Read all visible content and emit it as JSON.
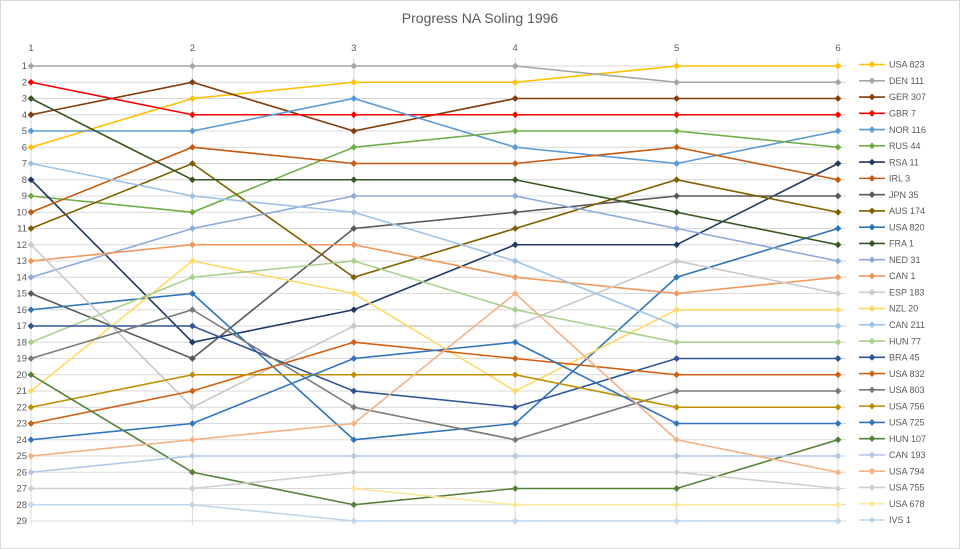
{
  "window": {
    "title": "Progress NA Soling 1996"
  },
  "chart_data": {
    "type": "line",
    "title": "Progress NA Soling 1996",
    "xlabel": "",
    "ylabel": "",
    "x_axis": {
      "position": "top",
      "labels": [
        "1",
        "2",
        "3",
        "4",
        "5",
        "6"
      ]
    },
    "y_axis": {
      "inverted": true,
      "min": 1,
      "max": 29,
      "labels": [
        "1",
        "2",
        "3",
        "4",
        "5",
        "6",
        "7",
        "8",
        "9",
        "10",
        "11",
        "12",
        "13",
        "14",
        "15",
        "16",
        "17",
        "18",
        "19",
        "20",
        "21",
        "22",
        "23",
        "24",
        "25",
        "26",
        "27",
        "28",
        "29"
      ]
    },
    "grid": true,
    "legend_position": "right",
    "marker": "diamond",
    "series": [
      {
        "name": "USA 823",
        "color": "#FFC000",
        "positions": [
          6,
          3,
          2,
          2,
          1,
          1
        ]
      },
      {
        "name": "DEN 111",
        "color": "#A5A5A5",
        "positions": [
          1,
          1,
          1,
          1,
          2,
          2
        ]
      },
      {
        "name": "GER 307",
        "color": "#843C0C",
        "positions": [
          4,
          2,
          5,
          3,
          3,
          3
        ]
      },
      {
        "name": "GBR 7",
        "color": "#FF0000",
        "positions": [
          2,
          4,
          4,
          4,
          4,
          4
        ]
      },
      {
        "name": "NOR 116",
        "color": "#5B9BD5",
        "positions": [
          5,
          5,
          3,
          6,
          7,
          5
        ]
      },
      {
        "name": "RUS 44",
        "color": "#70AD47",
        "positions": [
          9,
          10,
          6,
          5,
          5,
          6
        ]
      },
      {
        "name": "RSA 11",
        "color": "#203864",
        "positions": [
          8,
          18,
          16,
          12,
          12,
          7
        ]
      },
      {
        "name": "IRL 3",
        "color": "#C55A11",
        "positions": [
          10,
          6,
          7,
          7,
          6,
          8
        ]
      },
      {
        "name": "JPN 35",
        "color": "#595959",
        "positions": [
          15,
          19,
          11,
          10,
          9,
          9
        ]
      },
      {
        "name": "AUS 174",
        "color": "#7F6000",
        "positions": [
          11,
          7,
          14,
          11,
          8,
          10
        ]
      },
      {
        "name": "USA 820",
        "color": "#2E75B6",
        "positions": [
          16,
          15,
          24,
          23,
          14,
          11
        ]
      },
      {
        "name": "FRA 1",
        "color": "#375623",
        "positions": [
          3,
          8,
          8,
          8,
          10,
          12
        ]
      },
      {
        "name": "NED 31",
        "color": "#8FAADC",
        "positions": [
          14,
          11,
          9,
          9,
          11,
          13
        ]
      },
      {
        "name": "CAN 1",
        "color": "#F1975A",
        "positions": [
          13,
          12,
          12,
          14,
          15,
          14
        ]
      },
      {
        "name": "ESP 183",
        "color": "#C9C9C9",
        "positions": [
          12,
          22,
          17,
          17,
          13,
          15
        ]
      },
      {
        "name": "NZL 20",
        "color": "#FFD966",
        "positions": [
          21,
          13,
          15,
          21,
          16,
          16
        ]
      },
      {
        "name": "CAN 211",
        "color": "#9DC3E6",
        "positions": [
          7,
          9,
          10,
          13,
          17,
          17
        ]
      },
      {
        "name": "HUN 77",
        "color": "#A9D18E",
        "positions": [
          18,
          14,
          13,
          16,
          18,
          18
        ]
      },
      {
        "name": "BRA 45",
        "color": "#2F5597",
        "positions": [
          17,
          17,
          21,
          22,
          19,
          19
        ]
      },
      {
        "name": "USA 832",
        "color": "#D26012",
        "positions": [
          23,
          21,
          18,
          19,
          20,
          20
        ]
      },
      {
        "name": "USA 803",
        "color": "#7B7B7B",
        "positions": [
          19,
          16,
          22,
          24,
          21,
          21
        ]
      },
      {
        "name": "USA 756",
        "color": "#BF8F00",
        "positions": [
          22,
          20,
          20,
          20,
          22,
          22
        ]
      },
      {
        "name": "USA 725",
        "color": "#3174C2",
        "positions": [
          24,
          23,
          19,
          18,
          23,
          23
        ]
      },
      {
        "name": "HUN 107",
        "color": "#538135",
        "positions": [
          20,
          26,
          28,
          27,
          27,
          24
        ]
      },
      {
        "name": "CAN 193",
        "color": "#B4C7E7",
        "positions": [
          26,
          25,
          25,
          25,
          25,
          25
        ]
      },
      {
        "name": "USA 794",
        "color": "#F4B183",
        "positions": [
          25,
          24,
          23,
          15,
          24,
          26
        ]
      },
      {
        "name": "USA 755",
        "color": "#D0CECE",
        "positions": [
          27,
          27,
          26,
          26,
          26,
          27
        ]
      },
      {
        "name": "USA 678",
        "color": "#FFE699",
        "positions": [
          null,
          null,
          27,
          28,
          28,
          28
        ]
      },
      {
        "name": "IVS 1",
        "color": "#BDD7EE",
        "positions": [
          28,
          28,
          29,
          29,
          29,
          29
        ]
      }
    ]
  }
}
